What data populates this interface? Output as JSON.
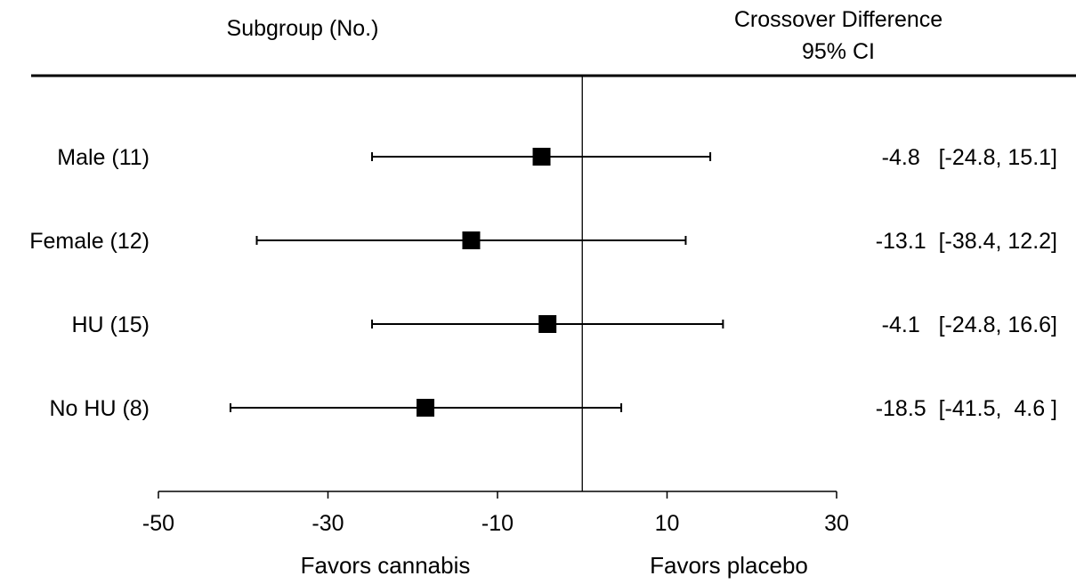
{
  "chart_data": {
    "type": "forest",
    "column_headers": {
      "left": "Subgroup (No.)",
      "right_line1": "Crossover Difference",
      "right_line2": "95% CI"
    },
    "rows": [
      {
        "label": "Male (11)",
        "estimate": -4.8,
        "lower": -24.8,
        "upper": 15.1,
        "text": "-4.8   [-24.8, 15.1]"
      },
      {
        "label": "Female (12)",
        "estimate": -13.1,
        "lower": -38.4,
        "upper": 12.2,
        "text": "-13.1  [-38.4, 12.2]"
      },
      {
        "label": "HU (15)",
        "estimate": -4.1,
        "lower": -24.8,
        "upper": 16.6,
        "text": "-4.1   [-24.8, 16.6]"
      },
      {
        "label": "No HU (8)",
        "estimate": -18.5,
        "lower": -41.5,
        "upper": 4.6,
        "text": "-18.5  [-41.5,  4.6 ]"
      }
    ],
    "xlim": [
      -50,
      30
    ],
    "xticks": [
      -50,
      -30,
      -10,
      10,
      30
    ],
    "reference_line": 0,
    "direction_labels": {
      "left": "Favors cannabis",
      "right": "Favors placebo"
    },
    "grid": false
  }
}
